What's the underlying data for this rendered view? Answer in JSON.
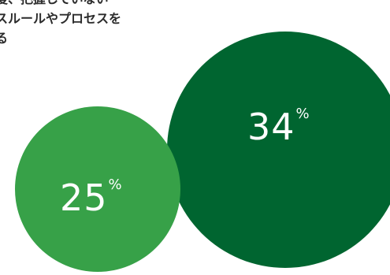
{
  "text_lines": [
    "度、把握していない",
    "スルールやプロセスを",
    "る"
  ],
  "chart_data": {
    "type": "bubble",
    "bubbles": [
      {
        "value": 34,
        "unit": "%",
        "color": "#006530"
      },
      {
        "value": 25,
        "unit": "%",
        "color": "#37a148"
      }
    ]
  }
}
